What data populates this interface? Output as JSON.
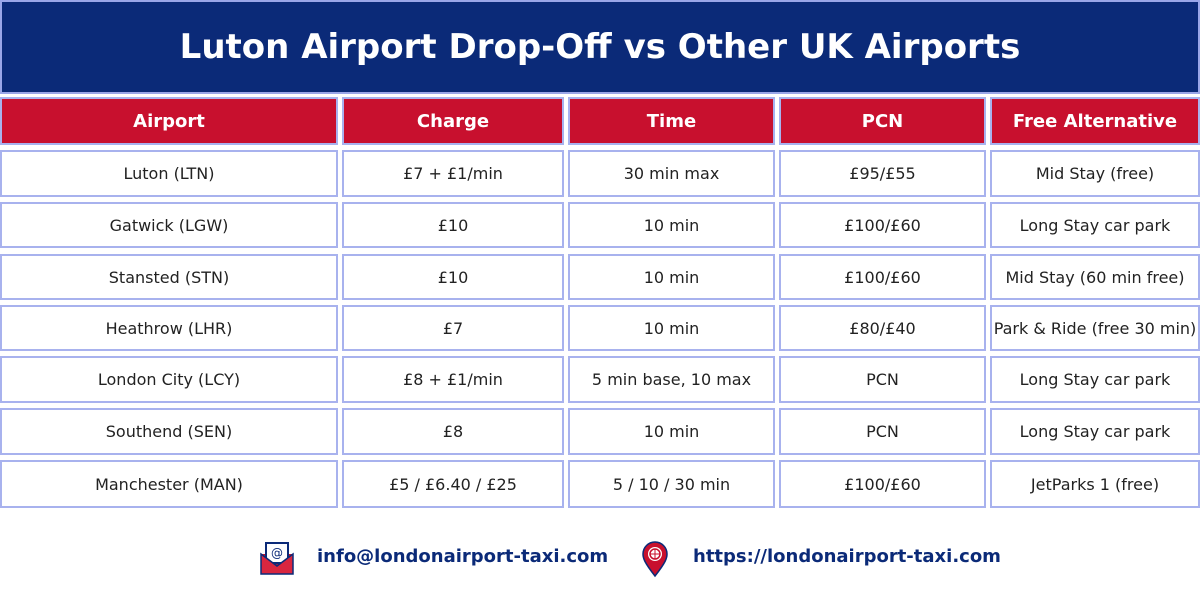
{
  "header": {
    "title": "Luton Airport Drop-Off vs Other UK Airports"
  },
  "table": {
    "columns": [
      "Airport",
      "Charge",
      "Time",
      "PCN",
      "Free Alternative"
    ],
    "rows": [
      [
        "Luton (LTN)",
        "£7 + £1/min",
        "30 min max",
        "£95/£55",
        "Mid Stay (free)"
      ],
      [
        "Gatwick (LGW)",
        "£10",
        "10 min",
        "£100/£60",
        "Long Stay car park"
      ],
      [
        "Stansted (STN)",
        "£10",
        "10 min",
        "£100/£60",
        "Mid Stay (60 min free)"
      ],
      [
        "Heathrow (LHR)",
        "£7",
        "10 min",
        "£80/£40",
        "Park & Ride (free 30 min)"
      ],
      [
        "London City (LCY)",
        "£8 + £1/min",
        "5 min base, 10 max",
        "PCN",
        "Long Stay car park"
      ],
      [
        "Southend (SEN)",
        "£8",
        "10 min",
        "PCN",
        "Long Stay car park"
      ],
      [
        "Manchester (MAN)",
        "£5 / £6.40 / £25",
        "5 / 10 / 30 min",
        "£100/£60",
        "JetParks 1 (free)"
      ]
    ]
  },
  "footer": {
    "email": "info@londonairport-taxi.com",
    "website": "https://londonairport-taxi.com"
  }
}
